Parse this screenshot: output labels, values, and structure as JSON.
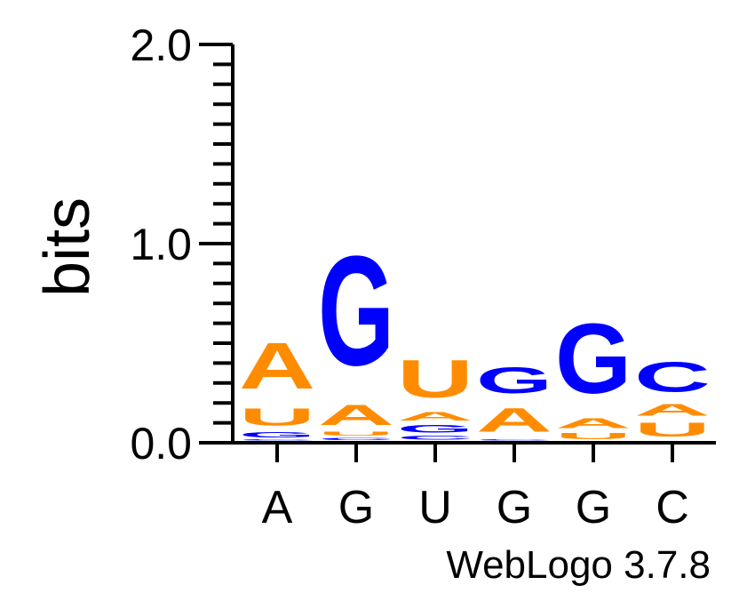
{
  "chart_data": {
    "type": "sequence-logo",
    "ylabel": "bits",
    "ylim": [
      0,
      2.0
    ],
    "yticks": [
      "0.0",
      "1.0",
      "2.0"
    ],
    "x_labels": [
      "A",
      "G",
      "U",
      "G",
      "G",
      "C"
    ],
    "colors": {
      "A": "#ff8c00",
      "U": "#ff8c00",
      "G": "#0000ff",
      "C": "#0000ff"
    },
    "positions": [
      {
        "label": "A",
        "stack": [
          {
            "letter": "C",
            "bits": 0.01
          },
          {
            "letter": "G",
            "bits": 0.04
          },
          {
            "letter": "U",
            "bits": 0.14
          },
          {
            "letter": "A",
            "bits": 0.37
          }
        ]
      },
      {
        "label": "G",
        "stack": [
          {
            "letter": "C",
            "bits": 0.02
          },
          {
            "letter": "U",
            "bits": 0.03
          },
          {
            "letter": "A",
            "bits": 0.16
          },
          {
            "letter": "G",
            "bits": 0.88
          }
        ]
      },
      {
        "label": "U",
        "stack": [
          {
            "letter": "C",
            "bits": 0.03
          },
          {
            "letter": "G",
            "bits": 0.06
          },
          {
            "letter": "A",
            "bits": 0.07
          },
          {
            "letter": "U",
            "bits": 0.3
          }
        ]
      },
      {
        "label": "G",
        "stack": [
          {
            "letter": "C",
            "bits": 0.01
          },
          {
            "letter": "A",
            "bits": 0.19
          },
          {
            "letter": "G",
            "bits": 0.21
          }
        ]
      },
      {
        "label": "G",
        "stack": [
          {
            "letter": "U",
            "bits": 0.05
          },
          {
            "letter": "A",
            "bits": 0.08
          },
          {
            "letter": "G",
            "bits": 0.56
          }
        ]
      },
      {
        "label": "C",
        "stack": [
          {
            "letter": "U",
            "bits": 0.11
          },
          {
            "letter": "A",
            "bits": 0.09
          },
          {
            "letter": "C",
            "bits": 0.24
          }
        ]
      }
    ],
    "credit": "WebLogo 3.7.8"
  }
}
